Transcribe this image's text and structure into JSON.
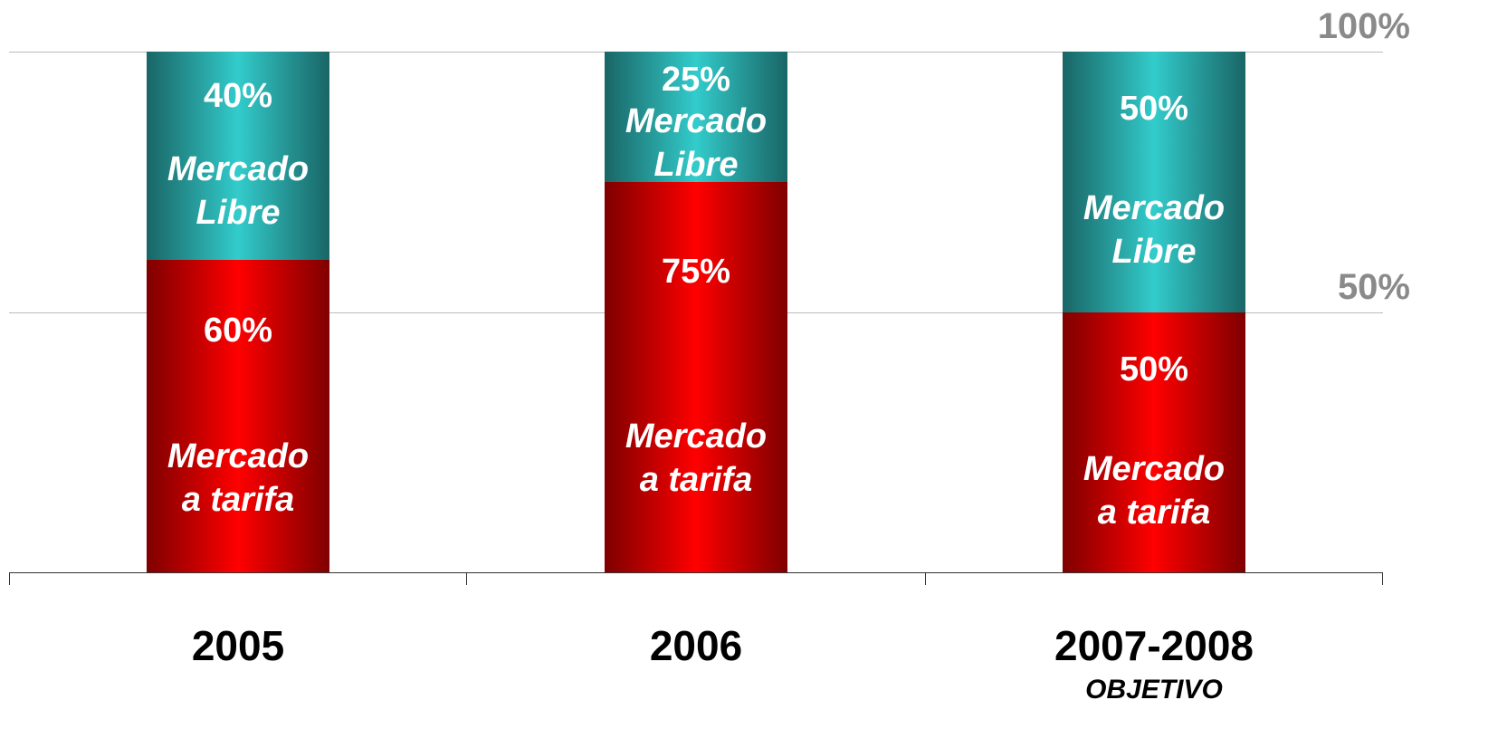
{
  "chart_data": {
    "type": "stacked_bar",
    "categories": [
      "2005",
      "2006",
      "2007-2008"
    ],
    "annotations": [
      "OBJETIVO"
    ],
    "series": [
      {
        "name": "Mercado a tarifa",
        "color": "#ff0000",
        "values": [
          60,
          75,
          50
        ],
        "value_labels": [
          "60%",
          "75%",
          "50%"
        ]
      },
      {
        "name": "Mercado Libre",
        "color": "#33cccc",
        "values": [
          40,
          25,
          50
        ],
        "value_labels": [
          "40%",
          "25%",
          "50%"
        ]
      }
    ],
    "ylim": [
      0,
      100
    ],
    "yticks": [
      {
        "value": 50,
        "label": "50%"
      },
      {
        "value": 100,
        "label": "100%"
      }
    ],
    "grid": true
  }
}
